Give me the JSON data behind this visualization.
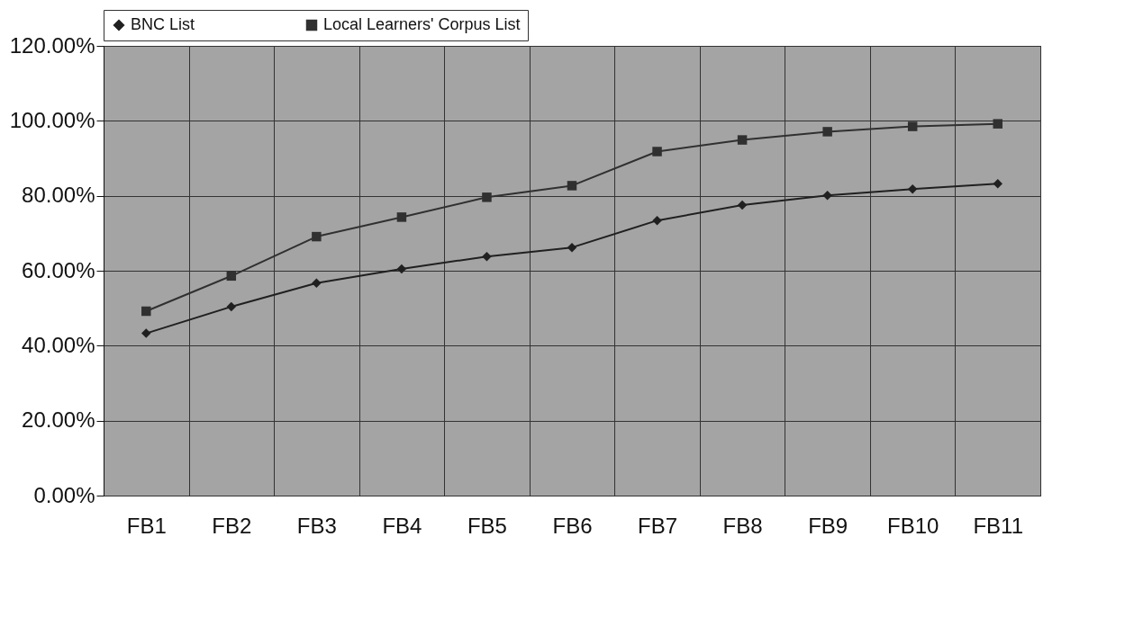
{
  "chart_data": {
    "type": "line",
    "categories": [
      "FB1",
      "FB2",
      "FB3",
      "FB4",
      "FB5",
      "FB6",
      "FB7",
      "FB8",
      "FB9",
      "FB10",
      "FB11"
    ],
    "series": [
      {
        "name": "BNC List",
        "color": "#202020",
        "marker": "diamond",
        "values": [
          43.3,
          50.4,
          56.7,
          60.5,
          63.8,
          66.2,
          73.4,
          77.5,
          80.1,
          81.8,
          83.2
        ]
      },
      {
        "name": "Local Learners' Corpus List",
        "color": "#303030",
        "marker": "square",
        "values": [
          49.2,
          58.6,
          69.1,
          74.3,
          79.6,
          82.7,
          91.8,
          94.9,
          97.1,
          98.5,
          99.2
        ]
      }
    ],
    "ylim": [
      0,
      120
    ],
    "yticks": [
      {
        "value": 0,
        "label": "0.00%"
      },
      {
        "value": 20,
        "label": "20.00%"
      },
      {
        "value": 40,
        "label": "40.00%"
      },
      {
        "value": 60,
        "label": "60.00%"
      },
      {
        "value": 80,
        "label": "80.00%"
      },
      {
        "value": 100,
        "label": "100.00%"
      },
      {
        "value": 120,
        "label": "120.00%"
      }
    ],
    "grid": true,
    "legend": "top",
    "line_style": "solid"
  }
}
